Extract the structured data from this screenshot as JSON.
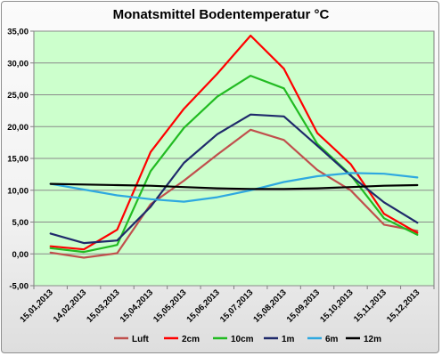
{
  "chart_data": {
    "type": "line",
    "title": "Monatsmittel Bodentemperatur °C",
    "xlabel": "",
    "ylabel": "",
    "categories": [
      "15,01,2013",
      "14,02,2013",
      "15,03,2013",
      "15,04,2013",
      "15,05,2013",
      "15,06,2013",
      "15,07,2013",
      "15,08,2013",
      "15,09,2013",
      "15,10,2013",
      "15,11,2013",
      "15,12,2013"
    ],
    "ylim": [
      -5,
      35
    ],
    "yticks": [
      "-5,00",
      "0,00",
      "5,00",
      "10,00",
      "15,00",
      "20,00",
      "25,00",
      "30,00",
      "35,00"
    ],
    "grid": true,
    "legend_position": "bottom",
    "plot_background": "#ccffcc",
    "series": [
      {
        "name": "Luft",
        "color": "#c0504d",
        "values": [
          0.2,
          -0.6,
          0.1,
          7.8,
          11.5,
          15.6,
          19.5,
          17.9,
          13.2,
          10.0,
          4.6,
          3.6
        ]
      },
      {
        "name": "2cm",
        "color": "#ff0000",
        "values": [
          1.2,
          0.7,
          3.8,
          16.0,
          22.8,
          28.3,
          34.3,
          29.1,
          19.0,
          14.1,
          6.3,
          3.3
        ]
      },
      {
        "name": "10cm",
        "color": "#22bb22",
        "values": [
          0.9,
          0.3,
          1.4,
          13.0,
          19.8,
          24.7,
          28.0,
          26.0,
          17.3,
          12.4,
          5.6,
          3.0
        ]
      },
      {
        "name": "1m",
        "color": "#1f2a6b",
        "values": [
          3.2,
          1.7,
          2.1,
          7.4,
          14.3,
          18.8,
          21.9,
          21.6,
          17.0,
          12.3,
          8.1,
          4.9
        ]
      },
      {
        "name": "6m",
        "color": "#2ea8e0",
        "values": [
          11.0,
          10.1,
          9.2,
          8.6,
          8.2,
          8.9,
          10.0,
          11.3,
          12.2,
          12.7,
          12.6,
          12.0
        ]
      },
      {
        "name": "12m",
        "color": "#000000",
        "values": [
          11.0,
          10.9,
          10.8,
          10.7,
          10.5,
          10.3,
          10.2,
          10.2,
          10.3,
          10.5,
          10.7,
          10.8
        ]
      }
    ]
  }
}
